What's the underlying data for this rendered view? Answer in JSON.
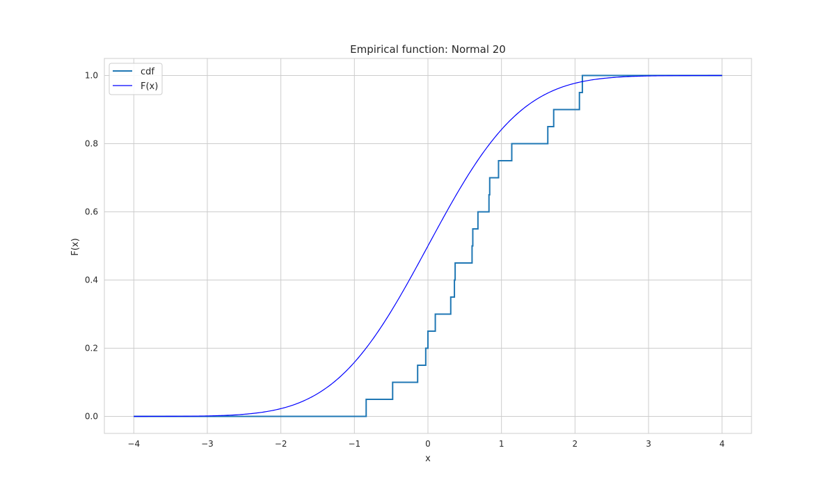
{
  "chart_data": {
    "type": "line",
    "title": "Empirical function: Normal 20",
    "xlabel": "x",
    "ylabel": "F(x)",
    "xlim": [
      -4.4,
      4.4
    ],
    "ylim": [
      -0.05,
      1.05
    ],
    "xticks": [
      -4,
      -3,
      -2,
      -1,
      0,
      1,
      2,
      3,
      4
    ],
    "xtick_labels": [
      "−4",
      "−3",
      "−2",
      "−1",
      "0",
      "1",
      "2",
      "3",
      "4"
    ],
    "yticks": [
      0.0,
      0.2,
      0.4,
      0.6,
      0.8,
      1.0
    ],
    "ytick_labels": [
      "0.0",
      "0.2",
      "0.4",
      "0.6",
      "0.8",
      "1.0"
    ],
    "grid": true,
    "legend_position": "upper-left",
    "series": [
      {
        "name": "cdf",
        "kind": "step",
        "color": "#1f77b4",
        "x_range": [
          -4,
          4
        ],
        "jumps": [
          -0.84,
          -0.48,
          -0.14,
          -0.03,
          0.0,
          0.1,
          0.31,
          0.36,
          0.37,
          0.6,
          0.61,
          0.68,
          0.83,
          0.84,
          0.96,
          1.14,
          1.63,
          1.71,
          2.06,
          2.1
        ],
        "values_after_jump": [
          0.05,
          0.1,
          0.15,
          0.2,
          0.25,
          0.3,
          0.35,
          0.4,
          0.45,
          0.5,
          0.55,
          0.6,
          0.65,
          0.7,
          0.75,
          0.8,
          0.85,
          0.9,
          0.95,
          1.0
        ]
      },
      {
        "name": "F(x)",
        "kind": "normal_cdf",
        "color": "#0000ff",
        "x_range": [
          -4,
          4
        ],
        "mu": 0,
        "sigma": 1
      }
    ]
  }
}
